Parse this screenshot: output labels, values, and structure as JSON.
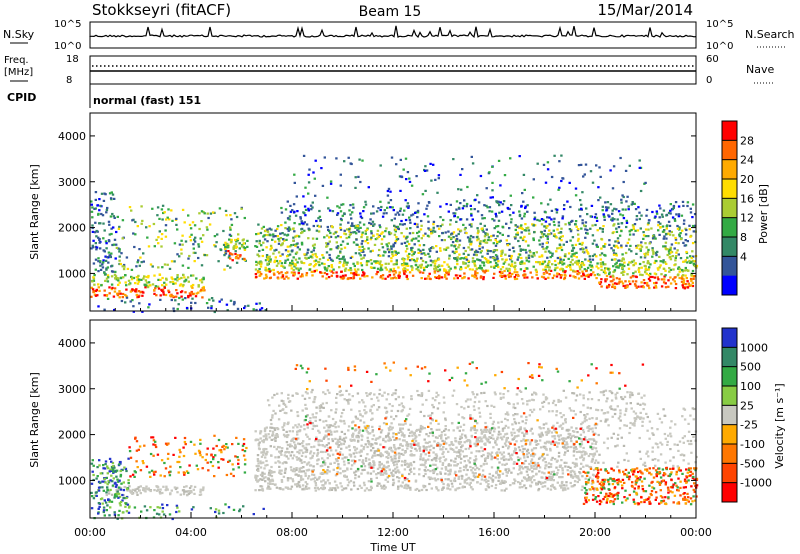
{
  "header": {
    "station": "Stokkseyri (fitACF)",
    "beam": "Beam 15",
    "date": "15/Mar/2014"
  },
  "top_panels": {
    "nsky_label": "N.Sky",
    "nsky_ticks": [
      "10^5",
      "10^0"
    ],
    "nsearch_label": "N.Search",
    "nsearch_ticks": [
      "10^5",
      "10^0"
    ],
    "freq_label_line1": "Freq.",
    "freq_label_line2": "[MHz]",
    "freq_ticks": [
      "18",
      "8"
    ],
    "nave_label": "Nave",
    "nave_ticks": [
      "60",
      "0"
    ],
    "cpid_label": "CPID",
    "cpid_value": "normal (fast) 151"
  },
  "chart_data": [
    {
      "type": "heatmap",
      "name": "power",
      "ylabel": "Slant Range [km]",
      "ylim": [
        180,
        4500
      ],
      "yticks": [
        1000,
        2000,
        3000,
        4000
      ],
      "colorbar_label": "Power [dB]",
      "colorbar_ticks": [
        "28",
        "24",
        "20",
        "16",
        "12",
        "8",
        "4"
      ],
      "colorbar_colors": [
        "#ff0000",
        "#ff6600",
        "#ffaa00",
        "#ffdd00",
        "#aacc33",
        "#33aa44",
        "#338866",
        "#335599",
        "#0000ff"
      ]
    },
    {
      "type": "heatmap",
      "name": "velocity",
      "ylabel": "Slant Range [km]",
      "ylim": [
        180,
        4500
      ],
      "yticks": [
        1000,
        2000,
        3000,
        4000
      ],
      "colorbar_label": "Velocity [m s⁻¹]",
      "colorbar_ticks": [
        "1000",
        "500",
        "100",
        "25",
        "-25",
        "-100",
        "-500",
        "-1000"
      ],
      "colorbar_colors": [
        "#2233cc",
        "#338866",
        "#33aa44",
        "#88cc44",
        "#c8c8c0",
        "#ffaa00",
        "#ff7700",
        "#ff4400",
        "#ff0000"
      ],
      "xlabel": "Time UT",
      "xticks": [
        "00:00",
        "04:00",
        "08:00",
        "12:00",
        "16:00",
        "20:00",
        "00:00"
      ]
    }
  ]
}
